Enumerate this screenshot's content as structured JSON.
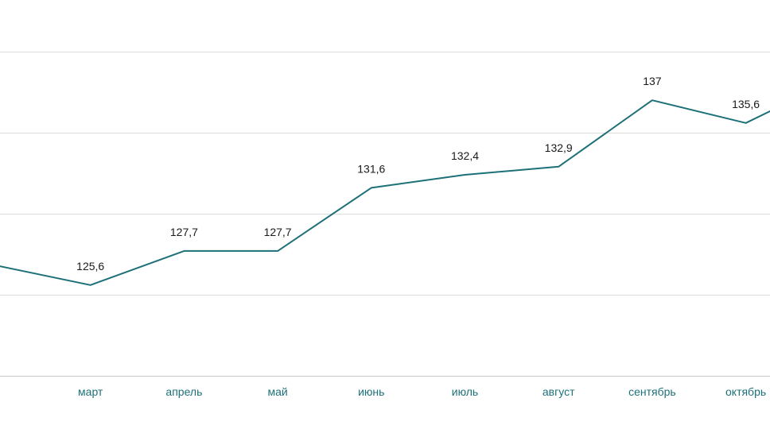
{
  "chart_data": {
    "type": "line",
    "title": "",
    "xlabel": "",
    "ylabel": "",
    "categories": [
      "",
      "март",
      "апрель",
      "май",
      "июнь",
      "июль",
      "август",
      "сентябрь",
      "октябрь",
      ""
    ],
    "series": [
      {
        "values": [
          126.8,
          125.6,
          127.7,
          127.7,
          131.6,
          132.4,
          132.9,
          137,
          135.6,
          138.4
        ],
        "labels": [
          "",
          "125,6",
          "127,7",
          "127,7",
          "131,6",
          "132,4",
          "132,9",
          "137",
          "135,6",
          ""
        ]
      }
    ],
    "ylim": [
      120,
      140
    ],
    "grid": true,
    "legend": "none",
    "colors": {
      "line": "#1e7078",
      "tick_text": "#1e7078",
      "grid": "#dcdcdc"
    }
  }
}
